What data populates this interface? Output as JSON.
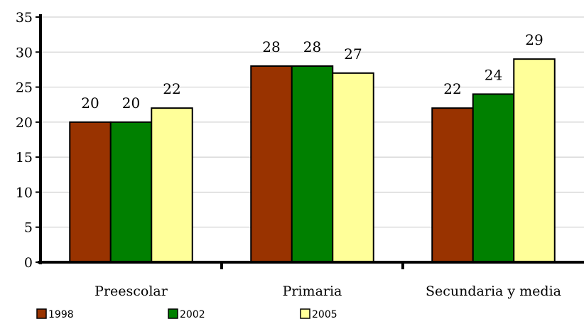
{
  "chart_data": {
    "type": "bar",
    "categories": [
      "Preescolar",
      "Primaria",
      "Secundaria y media"
    ],
    "series": [
      {
        "name": "1998",
        "values": [
          20,
          28,
          22
        ],
        "color": "#993300"
      },
      {
        "name": "2002",
        "values": [
          20,
          28,
          24
        ],
        "color": "#008000"
      },
      {
        "name": "2005",
        "values": [
          22,
          27,
          29
        ],
        "color": "#FFFF99"
      }
    ],
    "title": "",
    "xlabel": "",
    "ylabel": "",
    "ylim": [
      0,
      35
    ],
    "yticks": [
      0,
      5,
      10,
      15,
      20,
      25,
      30,
      35
    ],
    "grid": true,
    "legend_position": "bottom-left"
  }
}
